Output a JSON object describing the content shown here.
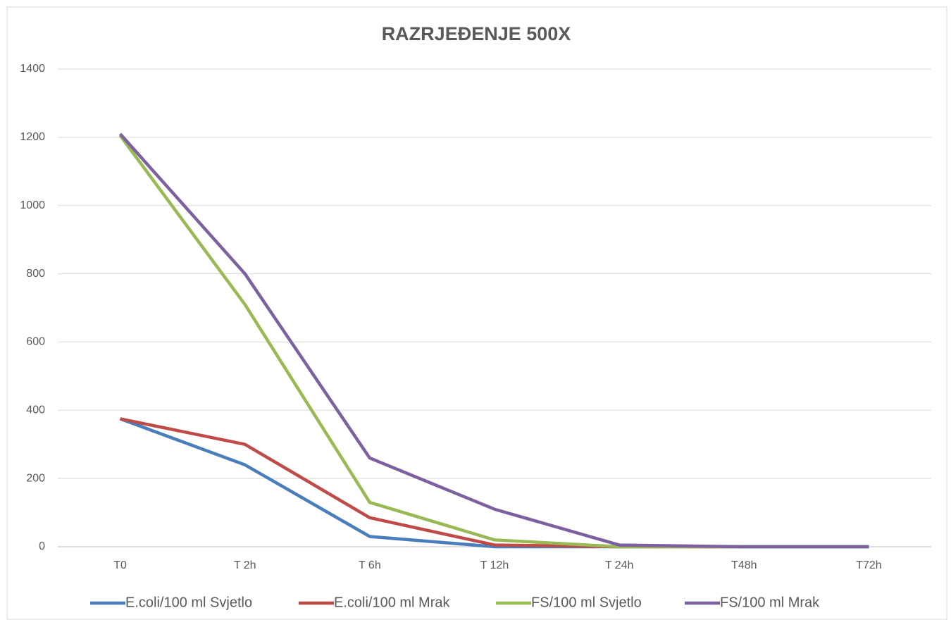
{
  "chart_data": {
    "type": "line",
    "title": "RAZRJEĐENJE 500X",
    "categories": [
      "T0",
      "T 2h",
      "T 6h",
      "T 12h",
      "T 24h",
      "T48h",
      "T72h"
    ],
    "series": [
      {
        "name": "E.coli/100 ml Svjetlo",
        "color": "#4a7ebb",
        "values": [
          375,
          240,
          30,
          0,
          0,
          0,
          0
        ]
      },
      {
        "name": "E.coli/100 ml Mrak",
        "color": "#be4b48",
        "values": [
          375,
          300,
          85,
          5,
          0,
          0,
          0
        ]
      },
      {
        "name": "FS/100 ml Svjetlo",
        "color": "#98b954",
        "values": [
          1205,
          710,
          130,
          20,
          0,
          0,
          0
        ]
      },
      {
        "name": "FS/100 ml Mrak",
        "color": "#7d60a0",
        "values": [
          1210,
          800,
          260,
          110,
          5,
          0,
          0
        ]
      }
    ],
    "ylim": [
      0,
      1400
    ],
    "yticks": [
      0,
      200,
      400,
      600,
      800,
      1000,
      1200,
      1400
    ],
    "grid": true,
    "legend": "bottom"
  }
}
